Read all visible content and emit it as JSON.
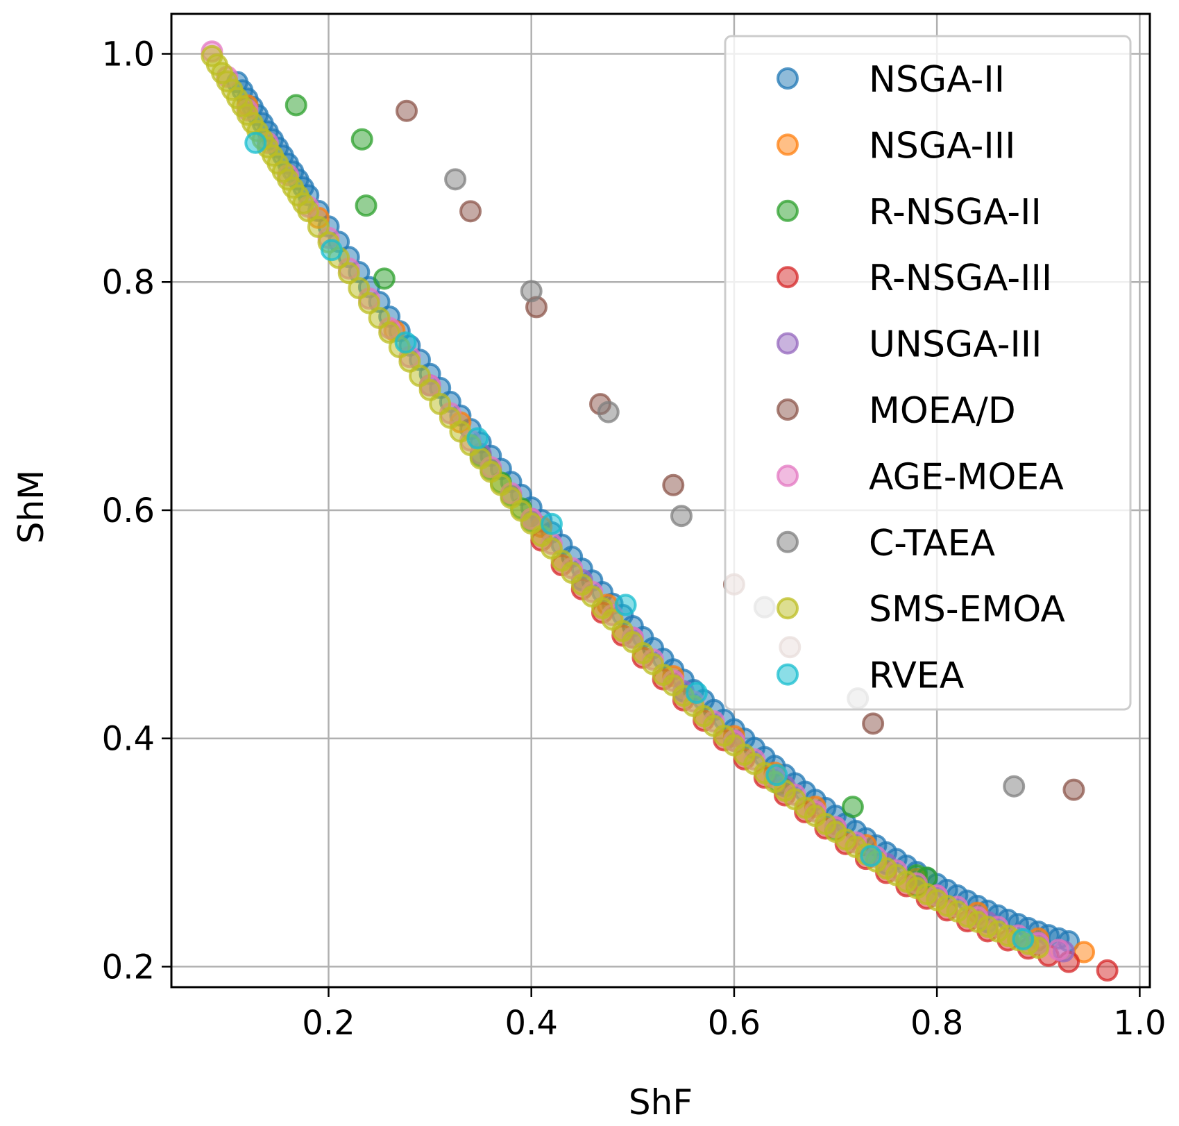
{
  "chart_data": {
    "type": "scatter",
    "title": "",
    "xlabel": "ShF",
    "ylabel": "ShM",
    "xlim": [
      0.045,
      1.01
    ],
    "ylim": [
      0.182,
      1.035
    ],
    "xticks": [
      0.2,
      0.4,
      0.6,
      0.8,
      1.0
    ],
    "xtick_labels": [
      "0.2",
      "0.4",
      "0.6",
      "0.8",
      "1.0"
    ],
    "yticks": [
      0.2,
      0.4,
      0.6,
      0.8,
      1.0
    ],
    "ytick_labels": [
      "0.2",
      "0.4",
      "0.6",
      "0.8",
      "1.0"
    ],
    "grid": true,
    "legend_position": "top-right",
    "series": [
      {
        "name": "NSGA-II",
        "color": "#1f77b4",
        "shift": 0.012,
        "x": [
          0.11,
          0.115,
          0.12,
          0.125,
          0.13,
          0.135,
          0.14,
          0.145,
          0.15,
          0.155,
          0.16,
          0.165,
          0.17,
          0.175,
          0.18,
          0.19,
          0.2,
          0.21,
          0.22,
          0.23,
          0.24,
          0.25,
          0.26,
          0.27,
          0.28,
          0.29,
          0.3,
          0.31,
          0.32,
          0.33,
          0.34,
          0.35,
          0.36,
          0.37,
          0.38,
          0.39,
          0.4,
          0.41,
          0.42,
          0.43,
          0.44,
          0.45,
          0.46,
          0.47,
          0.48,
          0.49,
          0.5,
          0.51,
          0.52,
          0.53,
          0.54,
          0.55,
          0.56,
          0.57,
          0.58,
          0.59,
          0.6,
          0.61,
          0.62,
          0.63,
          0.64,
          0.65,
          0.66,
          0.67,
          0.68,
          0.69,
          0.7,
          0.71,
          0.72,
          0.73,
          0.74,
          0.75,
          0.76,
          0.77,
          0.78,
          0.79,
          0.8,
          0.81,
          0.82,
          0.83,
          0.84,
          0.85,
          0.86,
          0.87,
          0.88,
          0.89,
          0.9,
          0.91,
          0.92,
          0.93
        ]
      },
      {
        "name": "NSGA-III",
        "color": "#ff7f0e",
        "shift": 0.006,
        "x": [
          0.12,
          0.19,
          0.265,
          0.33,
          0.41,
          0.475,
          0.54,
          0.6,
          0.64,
          0.68,
          0.73,
          0.78,
          0.84,
          0.9,
          0.945
        ]
      },
      {
        "name": "R-NSGA-II",
        "color": "#2ca02c",
        "shift": 0.0,
        "x": [
          0.35,
          0.36,
          0.37,
          0.38,
          0.39,
          0.4,
          0.645,
          0.7,
          0.78
        ],
        "extra_points": [
          {
            "x": 0.168,
            "y": 0.955
          },
          {
            "x": 0.233,
            "y": 0.925
          },
          {
            "x": 0.237,
            "y": 0.867
          },
          {
            "x": 0.255,
            "y": 0.803
          },
          {
            "x": 0.717,
            "y": 0.34
          },
          {
            "x": 0.78,
            "y": 0.28
          },
          {
            "x": 0.79,
            "y": 0.278
          }
        ]
      },
      {
        "name": "R-NSGA-III",
        "color": "#d62728",
        "shift": -0.006,
        "x": [
          0.41,
          0.43,
          0.45,
          0.47,
          0.49,
          0.51,
          0.53,
          0.55,
          0.57,
          0.59,
          0.61,
          0.63,
          0.65,
          0.67,
          0.69,
          0.71,
          0.73,
          0.75,
          0.77,
          0.79,
          0.81,
          0.83,
          0.85,
          0.87,
          0.89,
          0.91,
          0.93,
          0.968
        ]
      },
      {
        "name": "UNSGA-III",
        "color": "#9467bd",
        "shift": 0.002,
        "x": [
          0.3,
          0.35,
          0.4,
          0.45,
          0.5,
          0.55,
          0.6,
          0.65,
          0.7,
          0.75,
          0.8,
          0.85,
          0.9,
          0.925
        ]
      },
      {
        "name": "MOEA/D",
        "color": "#8c564b",
        "shift": 0.0,
        "x": [],
        "extra_points": [
          {
            "x": 0.277,
            "y": 0.95
          },
          {
            "x": 0.34,
            "y": 0.862
          },
          {
            "x": 0.405,
            "y": 0.778
          },
          {
            "x": 0.468,
            "y": 0.693
          },
          {
            "x": 0.54,
            "y": 0.622
          },
          {
            "x": 0.6,
            "y": 0.535
          },
          {
            "x": 0.655,
            "y": 0.48
          },
          {
            "x": 0.737,
            "y": 0.413
          },
          {
            "x": 0.935,
            "y": 0.355
          }
        ]
      },
      {
        "name": "AGE-MOEA",
        "color": "#e377c2",
        "shift": 0.002,
        "x": [
          0.085,
          0.1,
          0.12,
          0.14,
          0.16,
          0.18,
          0.2,
          0.22,
          0.24,
          0.26,
          0.28,
          0.3,
          0.32,
          0.34,
          0.36,
          0.38,
          0.4,
          0.42,
          0.44,
          0.46,
          0.48,
          0.5,
          0.52,
          0.54,
          0.56,
          0.58,
          0.6,
          0.62,
          0.64,
          0.66,
          0.68,
          0.7,
          0.72,
          0.74,
          0.76,
          0.78,
          0.8,
          0.82,
          0.84,
          0.86,
          0.88,
          0.9,
          0.92
        ]
      },
      {
        "name": "C-TAEA",
        "color": "#7f7f7f",
        "shift": 0.0,
        "x": [],
        "extra_points": [
          {
            "x": 0.325,
            "y": 0.89
          },
          {
            "x": 0.4,
            "y": 0.792
          },
          {
            "x": 0.476,
            "y": 0.686
          },
          {
            "x": 0.548,
            "y": 0.595
          },
          {
            "x": 0.63,
            "y": 0.515
          },
          {
            "x": 0.722,
            "y": 0.435
          },
          {
            "x": 0.876,
            "y": 0.358
          }
        ]
      },
      {
        "name": "SMS-EMOA",
        "color": "#bcbd22",
        "shift": -0.002,
        "x": [
          0.085,
          0.09,
          0.095,
          0.1,
          0.105,
          0.11,
          0.115,
          0.12,
          0.125,
          0.13,
          0.135,
          0.14,
          0.145,
          0.15,
          0.155,
          0.16,
          0.165,
          0.17,
          0.175,
          0.18,
          0.19,
          0.2,
          0.21,
          0.22,
          0.23,
          0.24,
          0.25,
          0.26,
          0.27,
          0.28,
          0.29,
          0.3,
          0.31,
          0.32,
          0.33,
          0.34,
          0.35,
          0.36,
          0.37,
          0.38,
          0.39,
          0.4,
          0.41,
          0.42,
          0.43,
          0.44,
          0.45,
          0.46,
          0.47,
          0.48,
          0.49,
          0.5,
          0.51,
          0.52,
          0.53,
          0.54,
          0.55,
          0.56,
          0.57,
          0.58,
          0.59,
          0.6,
          0.61,
          0.62,
          0.63,
          0.64,
          0.65,
          0.66,
          0.67,
          0.68,
          0.69,
          0.7,
          0.71,
          0.72,
          0.73,
          0.74,
          0.75,
          0.76,
          0.77,
          0.78,
          0.79,
          0.8,
          0.81,
          0.82,
          0.83,
          0.84,
          0.85,
          0.86,
          0.87,
          0.88,
          0.89,
          0.9
        ]
      },
      {
        "name": "RVEA",
        "color": "#17becf",
        "shift": 0.0,
        "x": [],
        "extra_points": [
          {
            "x": 0.128,
            "y": 0.922
          },
          {
            "x": 0.203,
            "y": 0.828
          },
          {
            "x": 0.276,
            "y": 0.747
          },
          {
            "x": 0.347,
            "y": 0.663
          },
          {
            "x": 0.42,
            "y": 0.588
          },
          {
            "x": 0.493,
            "y": 0.517
          },
          {
            "x": 0.563,
            "y": 0.44
          },
          {
            "x": 0.642,
            "y": 0.368
          },
          {
            "x": 0.735,
            "y": 0.297
          },
          {
            "x": 0.885,
            "y": 0.224
          }
        ]
      }
    ]
  }
}
